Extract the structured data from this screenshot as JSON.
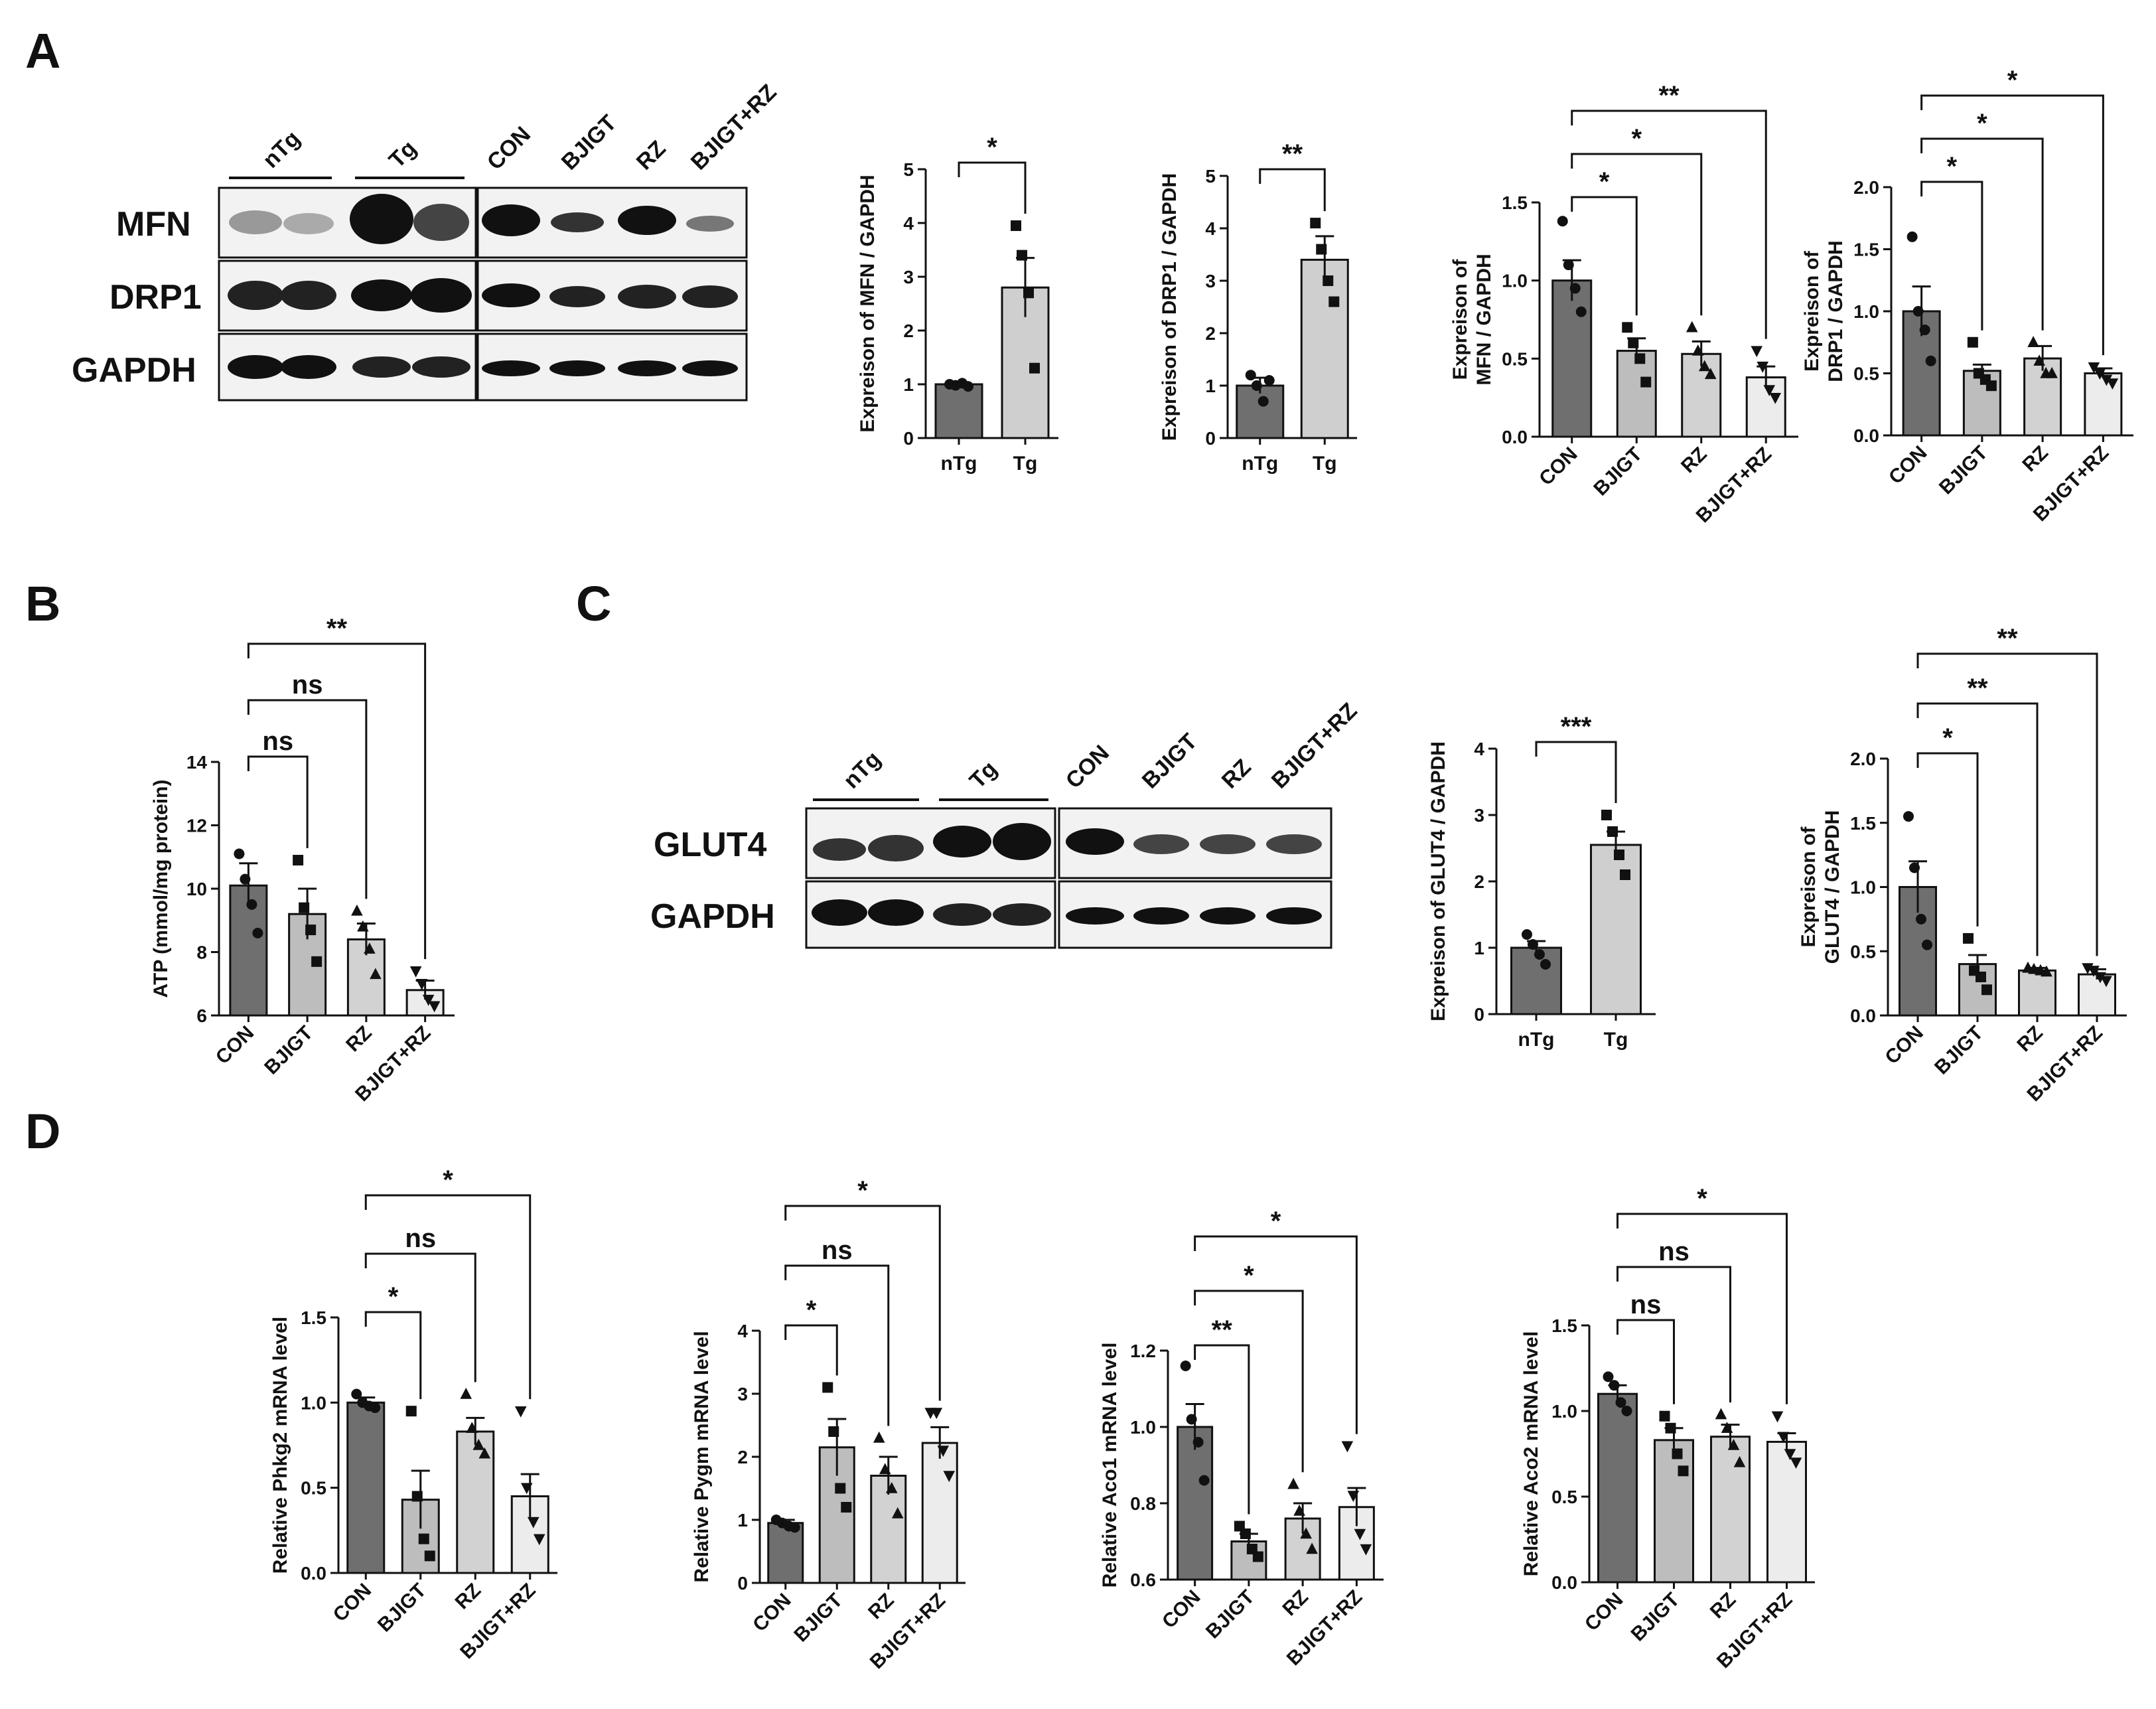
{
  "panels": {
    "A": "A",
    "B": "B",
    "C": "C",
    "D": "D"
  },
  "colors": {
    "group_nTg": "#6f6f6f",
    "group_Tg": "#cfcfcf",
    "group_CON": "#6f6f6f",
    "group_BJIGT": "#bdbdbd",
    "group_RZ": "#d2d2d2",
    "group_BJIGT_RZ": "#ececec",
    "band": "#111111",
    "blot_bg": "#f2f2f2",
    "axis": "#111111"
  },
  "blots": {
    "A": {
      "group_labels": [
        "nTg",
        "Tg"
      ],
      "treat_labels": [
        "CON",
        "BJIGT",
        "RZ",
        "BJIGT+RZ"
      ],
      "rows": [
        "MFN",
        "DRP1",
        "GAPDH"
      ]
    },
    "C": {
      "group_labels": [
        "nTg",
        "Tg"
      ],
      "treat_labels": [
        "CON",
        "BJIGT",
        "RZ",
        "BJIGT+RZ"
      ],
      "rows": [
        "GLUT4",
        "GAPDH"
      ]
    }
  },
  "chart_data": [
    {
      "id": "A1",
      "type": "bar",
      "title": "",
      "ylabel": [
        "Expreison of MFN / GAPDH"
      ],
      "xlabel": "",
      "categories": [
        "nTg",
        "Tg"
      ],
      "values": [
        1.0,
        2.8
      ],
      "errors": [
        0.04,
        0.55
      ],
      "points": [
        [
          1.0,
          0.98,
          1.02,
          0.96
        ],
        [
          3.95,
          3.4,
          2.7,
          1.3
        ]
      ],
      "markers": [
        "circle",
        "square"
      ],
      "ylim": [
        0,
        5
      ],
      "yticks": [
        0,
        1,
        2,
        3,
        4,
        5
      ],
      "ytick_labels": [
        "0",
        "1",
        "2",
        "3",
        "4",
        "5"
      ],
      "comparisons": [
        {
          "from": "nTg",
          "to": "Tg",
          "label": "*"
        }
      ]
    },
    {
      "id": "A2",
      "type": "bar",
      "title": "",
      "ylabel": [
        "Expreison of DRP1 / GAPDH"
      ],
      "xlabel": "",
      "categories": [
        "nTg",
        "Tg"
      ],
      "values": [
        1.0,
        3.4
      ],
      "errors": [
        0.15,
        0.45
      ],
      "points": [
        [
          1.2,
          1.0,
          0.7,
          1.1
        ],
        [
          4.1,
          3.6,
          3.0,
          2.6
        ]
      ],
      "markers": [
        "circle",
        "square"
      ],
      "ylim": [
        0,
        5
      ],
      "yticks": [
        0,
        1,
        2,
        3,
        4,
        5
      ],
      "ytick_labels": [
        "0",
        "1",
        "2",
        "3",
        "4",
        "5"
      ],
      "comparisons": [
        {
          "from": "nTg",
          "to": "Tg",
          "label": "**"
        }
      ]
    },
    {
      "id": "A3",
      "type": "bar",
      "title": "",
      "ylabel": [
        "Expreison of",
        "MFN / GAPDH"
      ],
      "xlabel": "",
      "categories": [
        "CON",
        "BJIGT",
        "RZ",
        "BJIGT+RZ"
      ],
      "values": [
        1.0,
        0.55,
        0.53,
        0.38
      ],
      "errors": [
        0.13,
        0.08,
        0.08,
        0.07
      ],
      "points": [
        [
          1.38,
          1.1,
          0.95,
          0.8
        ],
        [
          0.7,
          0.6,
          0.5,
          0.35
        ],
        [
          0.7,
          0.55,
          0.45,
          0.4
        ],
        [
          0.55,
          0.45,
          0.3,
          0.25
        ]
      ],
      "markers": [
        "circle",
        "square",
        "triangle",
        "triangle-down"
      ],
      "ylim": [
        0,
        1.5
      ],
      "yticks": [
        0,
        0.5,
        1.0,
        1.5
      ],
      "ytick_labels": [
        "0.0",
        "0.5",
        "1.0",
        "1.5"
      ],
      "comparisons": [
        {
          "from": "CON",
          "to": "BJIGT",
          "label": "*"
        },
        {
          "from": "CON",
          "to": "RZ",
          "label": "*"
        },
        {
          "from": "CON",
          "to": "BJIGT+RZ",
          "label": "**"
        }
      ]
    },
    {
      "id": "A4",
      "type": "bar",
      "title": "",
      "ylabel": [
        "Expreison of",
        "DRP1 / GAPDH"
      ],
      "xlabel": "",
      "categories": [
        "CON",
        "BJIGT",
        "RZ",
        "BJIGT+RZ"
      ],
      "values": [
        1.0,
        0.52,
        0.62,
        0.5
      ],
      "errors": [
        0.2,
        0.05,
        0.1,
        0.04
      ],
      "points": [
        [
          1.6,
          1.0,
          0.85,
          0.6
        ],
        [
          0.75,
          0.5,
          0.45,
          0.4
        ],
        [
          0.75,
          0.6,
          0.5,
          0.5
        ],
        [
          0.55,
          0.5,
          0.45,
          0.42
        ]
      ],
      "markers": [
        "circle",
        "square",
        "triangle",
        "triangle-down"
      ],
      "ylim": [
        0,
        2.0
      ],
      "yticks": [
        0,
        0.5,
        1.0,
        1.5,
        2.0
      ],
      "ytick_labels": [
        "0.0",
        "0.5",
        "1.0",
        "1.5",
        "2.0"
      ],
      "comparisons": [
        {
          "from": "CON",
          "to": "BJIGT",
          "label": "*"
        },
        {
          "from": "CON",
          "to": "RZ",
          "label": "*"
        },
        {
          "from": "CON",
          "to": "BJIGT+RZ",
          "label": "*"
        }
      ]
    },
    {
      "id": "B1",
      "type": "bar",
      "title": "",
      "ylabel": [
        "ATP (mmol/mg protein)"
      ],
      "xlabel": "",
      "categories": [
        "CON",
        "BJIGT",
        "RZ",
        "BJIGT+RZ"
      ],
      "values": [
        10.1,
        9.2,
        8.4,
        6.8
      ],
      "errors": [
        0.7,
        0.8,
        0.5,
        0.3
      ],
      "points": [
        [
          11.1,
          10.3,
          9.5,
          8.6
        ],
        [
          10.9,
          9.4,
          8.7,
          7.7
        ],
        [
          9.3,
          8.8,
          8.1,
          7.3
        ],
        [
          7.4,
          7.0,
          6.5,
          6.3
        ]
      ],
      "markers": [
        "circle",
        "square",
        "triangle",
        "triangle-down"
      ],
      "ylim": [
        6,
        14
      ],
      "yticks": [
        6,
        8,
        10,
        12,
        14
      ],
      "ytick_labels": [
        "6",
        "8",
        "10",
        "12",
        "14"
      ],
      "comparisons": [
        {
          "from": "CON",
          "to": "BJIGT",
          "label": "ns"
        },
        {
          "from": "CON",
          "to": "RZ",
          "label": "ns"
        },
        {
          "from": "CON",
          "to": "BJIGT+RZ",
          "label": "**"
        }
      ]
    },
    {
      "id": "C1",
      "type": "bar",
      "title": "",
      "ylabel": [
        "Expreison of GLUT4 / GAPDH"
      ],
      "xlabel": "",
      "categories": [
        "nTg",
        "Tg"
      ],
      "values": [
        1.0,
        2.55
      ],
      "errors": [
        0.1,
        0.2
      ],
      "points": [
        [
          1.2,
          1.05,
          0.9,
          0.75
        ],
        [
          3.0,
          2.75,
          2.4,
          2.1
        ]
      ],
      "markers": [
        "circle",
        "square"
      ],
      "ylim": [
        0,
        4
      ],
      "yticks": [
        0,
        1,
        2,
        3,
        4
      ],
      "ytick_labels": [
        "0",
        "1",
        "2",
        "3",
        "4"
      ],
      "comparisons": [
        {
          "from": "nTg",
          "to": "Tg",
          "label": "***"
        }
      ]
    },
    {
      "id": "C2",
      "type": "bar",
      "title": "",
      "ylabel": [
        "Expreison of",
        "GLUT4 / GAPDH"
      ],
      "xlabel": "",
      "categories": [
        "CON",
        "BJIGT",
        "RZ",
        "BJIGT+RZ"
      ],
      "values": [
        1.0,
        0.4,
        0.35,
        0.32
      ],
      "errors": [
        0.2,
        0.07,
        0.02,
        0.04
      ],
      "points": [
        [
          1.55,
          1.15,
          0.75,
          0.55
        ],
        [
          0.6,
          0.35,
          0.3,
          0.2
        ],
        [
          0.37,
          0.36,
          0.35,
          0.34
        ],
        [
          0.37,
          0.35,
          0.3,
          0.27
        ]
      ],
      "markers": [
        "circle",
        "square",
        "triangle",
        "triangle-down"
      ],
      "ylim": [
        0,
        2.0
      ],
      "yticks": [
        0,
        0.5,
        1.0,
        1.5,
        2.0
      ],
      "ytick_labels": [
        "0.0",
        "0.5",
        "1.0",
        "1.5",
        "2.0"
      ],
      "comparisons": [
        {
          "from": "CON",
          "to": "BJIGT",
          "label": "*"
        },
        {
          "from": "CON",
          "to": "RZ",
          "label": "**"
        },
        {
          "from": "CON",
          "to": "BJIGT+RZ",
          "label": "**"
        }
      ]
    },
    {
      "id": "D1",
      "type": "bar",
      "title": "",
      "ylabel": [
        "Relative Phkg2 mRNA level"
      ],
      "xlabel": "",
      "categories": [
        "CON",
        "BJIGT",
        "RZ",
        "BJIGT+RZ"
      ],
      "values": [
        1.0,
        0.43,
        0.83,
        0.45
      ],
      "errors": [
        0.03,
        0.17,
        0.08,
        0.13
      ],
      "points": [
        [
          1.05,
          1.0,
          0.98,
          0.97
        ],
        [
          0.95,
          0.45,
          0.2,
          0.1
        ],
        [
          1.05,
          0.85,
          0.75,
          0.7
        ],
        [
          0.95,
          0.5,
          0.3,
          0.2
        ]
      ],
      "markers": [
        "circle",
        "square",
        "triangle",
        "triangle-down"
      ],
      "ylim": [
        0,
        1.5
      ],
      "yticks": [
        0,
        0.5,
        1.0,
        1.5
      ],
      "ytick_labels": [
        "0.0",
        "0.5",
        "1.0",
        "1.5"
      ],
      "comparisons": [
        {
          "from": "CON",
          "to": "BJIGT",
          "label": "*"
        },
        {
          "from": "CON",
          "to": "RZ",
          "label": "ns"
        },
        {
          "from": "CON",
          "to": "BJIGT+RZ",
          "label": "*"
        }
      ]
    },
    {
      "id": "D2",
      "type": "bar",
      "title": "",
      "ylabel": [
        "Relative Pygm mRNA level"
      ],
      "xlabel": "",
      "categories": [
        "CON",
        "BJIGT",
        "RZ",
        "BJIGT+RZ"
      ],
      "values": [
        0.95,
        2.15,
        1.7,
        2.22
      ],
      "errors": [
        0.05,
        0.45,
        0.3,
        0.25
      ],
      "points": [
        [
          1.0,
          0.95,
          0.9,
          0.88
        ],
        [
          3.1,
          2.4,
          1.5,
          1.2
        ],
        [
          2.3,
          1.8,
          1.5,
          1.1
        ],
        [
          2.7,
          2.7,
          2.1,
          1.7
        ]
      ],
      "markers": [
        "circle",
        "square",
        "triangle",
        "triangle-down"
      ],
      "ylim": [
        0,
        4
      ],
      "yticks": [
        0,
        1,
        2,
        3,
        4
      ],
      "ytick_labels": [
        "0",
        "1",
        "2",
        "3",
        "4"
      ],
      "comparisons": [
        {
          "from": "CON",
          "to": "BJIGT",
          "label": "*"
        },
        {
          "from": "CON",
          "to": "RZ",
          "label": "ns"
        },
        {
          "from": "CON",
          "to": "BJIGT+RZ",
          "label": "*"
        }
      ]
    },
    {
      "id": "D3",
      "type": "bar",
      "title": "",
      "ylabel": [
        "Relative Aco1 mRNA level"
      ],
      "xlabel": "",
      "categories": [
        "CON",
        "BJIGT",
        "RZ",
        "BJIGT+RZ"
      ],
      "values": [
        1.0,
        0.7,
        0.76,
        0.79
      ],
      "errors": [
        0.06,
        0.02,
        0.04,
        0.05
      ],
      "points": [
        [
          1.16,
          1.02,
          0.96,
          0.86
        ],
        [
          0.74,
          0.72,
          0.68,
          0.66
        ],
        [
          0.85,
          0.78,
          0.72,
          0.68
        ],
        [
          0.95,
          0.82,
          0.72,
          0.68
        ]
      ],
      "markers": [
        "circle",
        "square",
        "triangle",
        "triangle-down"
      ],
      "ylim": [
        0.6,
        1.2
      ],
      "yticks": [
        0.6,
        0.8,
        1.0,
        1.2
      ],
      "ytick_labels": [
        "0.6",
        "0.8",
        "1.0",
        "1.2"
      ],
      "comparisons": [
        {
          "from": "CON",
          "to": "BJIGT",
          "label": "**"
        },
        {
          "from": "CON",
          "to": "RZ",
          "label": "*"
        },
        {
          "from": "CON",
          "to": "BJIGT+RZ",
          "label": "*"
        }
      ]
    },
    {
      "id": "D4",
      "type": "bar",
      "title": "",
      "ylabel": [
        "Relative Aco2 mRNA level"
      ],
      "xlabel": "",
      "categories": [
        "CON",
        "BJIGT",
        "RZ",
        "BJIGT+RZ"
      ],
      "values": [
        1.1,
        0.83,
        0.85,
        0.82
      ],
      "errors": [
        0.05,
        0.07,
        0.07,
        0.05
      ],
      "points": [
        [
          1.2,
          1.15,
          1.05,
          1.0
        ],
        [
          0.97,
          0.9,
          0.75,
          0.65
        ],
        [
          0.98,
          0.9,
          0.8,
          0.7
        ],
        [
          0.97,
          0.85,
          0.75,
          0.7
        ]
      ],
      "markers": [
        "circle",
        "square",
        "triangle",
        "triangle-down"
      ],
      "ylim": [
        0,
        1.5
      ],
      "yticks": [
        0,
        0.5,
        1.0,
        1.5
      ],
      "ytick_labels": [
        "0.0",
        "0.5",
        "1.0",
        "1.5"
      ],
      "comparisons": [
        {
          "from": "CON",
          "to": "BJIGT",
          "label": "ns"
        },
        {
          "from": "CON",
          "to": "RZ",
          "label": "ns"
        },
        {
          "from": "CON",
          "to": "BJIGT+RZ",
          "label": "*"
        }
      ]
    }
  ]
}
